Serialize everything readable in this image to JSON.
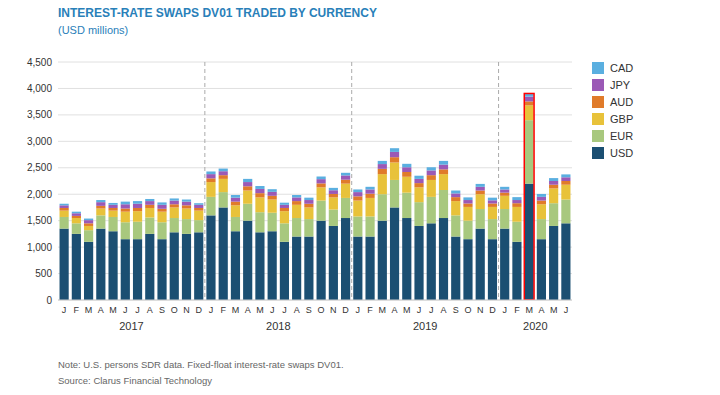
{
  "chart_data": {
    "type": "bar",
    "stacked": true,
    "title": "INTEREST-RATE SWAPS DV01 TRADED BY CURRENCY",
    "subtitle": "(USD millions)",
    "note": "Note:  U.S. persons SDR data. Fixed-float interest-rate swaps DV01.",
    "source": "Source: Clarus Financial Technology",
    "categories": [
      "J",
      "F",
      "M",
      "A",
      "M",
      "J",
      "J",
      "A",
      "S",
      "O",
      "N",
      "D",
      "J",
      "F",
      "M",
      "A",
      "M",
      "J",
      "J",
      "A",
      "S",
      "O",
      "N",
      "D",
      "J",
      "F",
      "M",
      "A",
      "M",
      "J",
      "J",
      "A",
      "S",
      "O",
      "N",
      "D",
      "J",
      "F",
      "M",
      "A",
      "M",
      "J"
    ],
    "series": [
      {
        "name": "USD",
        "color": "#1b4f72",
        "values": [
          1350,
          1250,
          1100,
          1350,
          1300,
          1150,
          1150,
          1250,
          1150,
          1280,
          1250,
          1280,
          1600,
          1750,
          1300,
          1500,
          1280,
          1300,
          1100,
          1200,
          1200,
          1500,
          1400,
          1550,
          1200,
          1200,
          1500,
          1750,
          1550,
          1400,
          1450,
          1550,
          1200,
          1150,
          1350,
          1150,
          1350,
          1100,
          2200,
          1150,
          1400,
          1450
        ]
      },
      {
        "name": "EUR",
        "color": "#a8c87e",
        "values": [
          220,
          200,
          220,
          250,
          270,
          320,
          330,
          310,
          320,
          270,
          280,
          230,
          350,
          290,
          270,
          320,
          380,
          350,
          350,
          350,
          330,
          380,
          310,
          380,
          380,
          380,
          500,
          520,
          480,
          450,
          500,
          530,
          400,
          350,
          370,
          380,
          370,
          380,
          1200,
          380,
          430,
          450
        ]
      },
      {
        "name": "GBP",
        "color": "#e8c23a",
        "values": [
          120,
          100,
          80,
          130,
          120,
          200,
          200,
          180,
          200,
          200,
          200,
          180,
          280,
          250,
          220,
          250,
          280,
          250,
          230,
          250,
          220,
          250,
          230,
          270,
          300,
          350,
          380,
          330,
          300,
          280,
          320,
          300,
          270,
          260,
          280,
          230,
          250,
          280,
          280,
          280,
          280,
          280
        ]
      },
      {
        "name": "AUD",
        "color": "#e07b2a",
        "values": [
          50,
          40,
          50,
          50,
          50,
          60,
          60,
          60,
          55,
          60,
          60,
          50,
          70,
          70,
          70,
          80,
          80,
          70,
          60,
          70,
          70,
          75,
          65,
          75,
          80,
          80,
          100,
          100,
          90,
          80,
          90,
          90,
          75,
          65,
          70,
          65,
          60,
          70,
          75,
          70,
          70,
          70
        ]
      },
      {
        "name": "JPY",
        "color": "#9b59b6",
        "values": [
          50,
          50,
          60,
          70,
          60,
          80,
          80,
          70,
          75,
          70,
          70,
          60,
          80,
          75,
          75,
          80,
          80,
          75,
          60,
          70,
          70,
          80,
          70,
          80,
          80,
          80,
          90,
          100,
          90,
          80,
          90,
          90,
          70,
          65,
          70,
          60,
          60,
          60,
          90,
          70,
          70,
          70
        ]
      },
      {
        "name": "CAD",
        "color": "#5aafe0",
        "values": [
          30,
          30,
          30,
          40,
          35,
          50,
          50,
          40,
          45,
          40,
          40,
          30,
          50,
          50,
          50,
          60,
          55,
          50,
          40,
          45,
          45,
          50,
          45,
          50,
          50,
          50,
          60,
          70,
          65,
          60,
          60,
          70,
          55,
          50,
          55,
          50,
          50,
          55,
          60,
          55,
          55,
          55
        ]
      }
    ],
    "annotations": [
      {
        "text": "2017",
        "x": 5.5
      },
      {
        "text": "2018",
        "x": 17.5
      },
      {
        "text": "2019",
        "x": 29.5
      },
      {
        "text": "2020",
        "x": 38.5
      }
    ],
    "highlight": 38,
    "ylim": [
      0,
      4500
    ],
    "yticks": [
      0,
      500,
      {
        "value": 1000,
        "label": "1,000"
      },
      {
        "value": 1500,
        "label": "1,500"
      },
      {
        "value": 2000,
        "label": "2,000"
      },
      {
        "value": 2500,
        "label": "2,500"
      },
      {
        "value": 3000,
        "label": "3,000"
      },
      {
        "value": 3500,
        "label": "3,500"
      },
      {
        "value": 4000,
        "label": "4,000"
      },
      {
        "value": 4500,
        "label": "4,500"
      }
    ],
    "grid": true,
    "legend": "right"
  }
}
